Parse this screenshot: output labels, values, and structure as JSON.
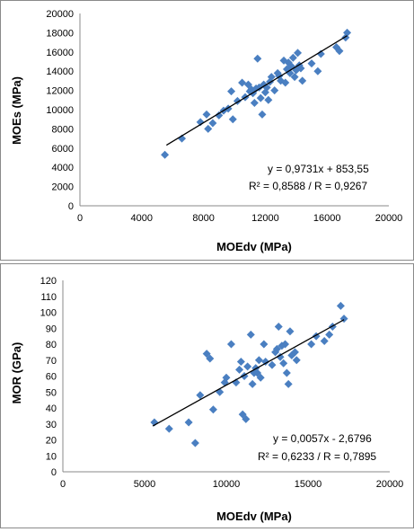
{
  "chart_data": [
    {
      "type": "scatter",
      "xlabel": "MOEdv (MPa)",
      "ylabel": "MOEs (MPa)",
      "xlim": [
        0,
        20000
      ],
      "ylim": [
        0,
        20000
      ],
      "x_ticks": [
        "0",
        "4000",
        "8000",
        "12000",
        "16000",
        "20000"
      ],
      "y_ticks": [
        "0",
        "2000",
        "4000",
        "6000",
        "8000",
        "10000",
        "12000",
        "14000",
        "16000",
        "18000",
        "20000"
      ],
      "grid": false,
      "marker_color": "#4a7fc1",
      "trendline": {
        "slope": 0.9731,
        "intercept": 853.55,
        "x_range": [
          5600,
          17300
        ]
      },
      "annotation_eq": "y = 0,9731x + 853,55",
      "annotation_r": "R² = 0,8588  /  R = 0,9267",
      "points": [
        [
          5500,
          5300
        ],
        [
          6600,
          7000
        ],
        [
          7800,
          8700
        ],
        [
          8200,
          9500
        ],
        [
          8300,
          8000
        ],
        [
          8600,
          8600
        ],
        [
          9000,
          9400
        ],
        [
          9300,
          9900
        ],
        [
          9600,
          10100
        ],
        [
          9800,
          11900
        ],
        [
          9900,
          9000
        ],
        [
          10200,
          10900
        ],
        [
          10500,
          12800
        ],
        [
          10700,
          11300
        ],
        [
          10900,
          12600
        ],
        [
          11000,
          11900
        ],
        [
          11100,
          12100
        ],
        [
          11200,
          11700
        ],
        [
          11300,
          10700
        ],
        [
          11400,
          12200
        ],
        [
          11500,
          15300
        ],
        [
          11600,
          12300
        ],
        [
          11700,
          11200
        ],
        [
          11800,
          9500
        ],
        [
          11900,
          12600
        ],
        [
          12000,
          11800
        ],
        [
          12100,
          12300
        ],
        [
          12200,
          11000
        ],
        [
          12300,
          12900
        ],
        [
          12400,
          13400
        ],
        [
          12600,
          12000
        ],
        [
          12800,
          13800
        ],
        [
          12900,
          13500
        ],
        [
          13000,
          13000
        ],
        [
          13200,
          15100
        ],
        [
          13300,
          12800
        ],
        [
          13400,
          14200
        ],
        [
          13500,
          14900
        ],
        [
          13600,
          13800
        ],
        [
          13700,
          14500
        ],
        [
          13800,
          15400
        ],
        [
          13900,
          13400
        ],
        [
          14000,
          14100
        ],
        [
          14100,
          15900
        ],
        [
          14200,
          14600
        ],
        [
          14300,
          14300
        ],
        [
          14400,
          13000
        ],
        [
          15000,
          14800
        ],
        [
          15400,
          14000
        ],
        [
          15600,
          15800
        ],
        [
          16600,
          16500
        ],
        [
          16800,
          16100
        ],
        [
          17200,
          17500
        ],
        [
          17300,
          18000
        ]
      ]
    },
    {
      "type": "scatter",
      "xlabel": "MOEdv (MPa)",
      "ylabel": "MOR (GPa)",
      "xlim": [
        0,
        20000
      ],
      "ylim": [
        0,
        120
      ],
      "x_ticks": [
        "0",
        "5000",
        "10000",
        "15000",
        "20000"
      ],
      "y_ticks": [
        "0",
        "10",
        "20",
        "30",
        "40",
        "50",
        "60",
        "70",
        "80",
        "90",
        "100",
        "110",
        "120"
      ],
      "grid": false,
      "marker_color": "#4a7fc1",
      "trendline": {
        "slope": 0.0057,
        "intercept": -2.6796,
        "x_range": [
          5500,
          17200
        ]
      },
      "annotation_eq": "y = 0,0057x - 2,6796",
      "annotation_r": "R² = 0,6233  /  R = 0,7895",
      "points": [
        [
          5600,
          31
        ],
        [
          6500,
          27
        ],
        [
          7700,
          31
        ],
        [
          8100,
          18
        ],
        [
          8400,
          48
        ],
        [
          8800,
          74
        ],
        [
          9000,
          71
        ],
        [
          9200,
          39
        ],
        [
          9600,
          50
        ],
        [
          9900,
          56
        ],
        [
          10000,
          59
        ],
        [
          10300,
          80
        ],
        [
          10600,
          56
        ],
        [
          10800,
          64
        ],
        [
          10900,
          69
        ],
        [
          11000,
          36
        ],
        [
          11100,
          60
        ],
        [
          11200,
          33
        ],
        [
          11300,
          66
        ],
        [
          11500,
          86
        ],
        [
          11600,
          55
        ],
        [
          11700,
          62
        ],
        [
          11800,
          65
        ],
        [
          11900,
          62
        ],
        [
          12000,
          70
        ],
        [
          12100,
          59
        ],
        [
          12300,
          80
        ],
        [
          12400,
          69
        ],
        [
          12800,
          67
        ],
        [
          13000,
          75
        ],
        [
          13100,
          77
        ],
        [
          13200,
          91
        ],
        [
          13300,
          72
        ],
        [
          13400,
          79
        ],
        [
          13500,
          68
        ],
        [
          13600,
          80
        ],
        [
          13700,
          62
        ],
        [
          13800,
          55
        ],
        [
          13900,
          88
        ],
        [
          14000,
          73
        ],
        [
          14200,
          75
        ],
        [
          14300,
          70
        ],
        [
          15200,
          80
        ],
        [
          15500,
          85
        ],
        [
          16000,
          82
        ],
        [
          16300,
          86
        ],
        [
          16500,
          91
        ],
        [
          17000,
          104
        ],
        [
          17200,
          96
        ]
      ]
    }
  ]
}
